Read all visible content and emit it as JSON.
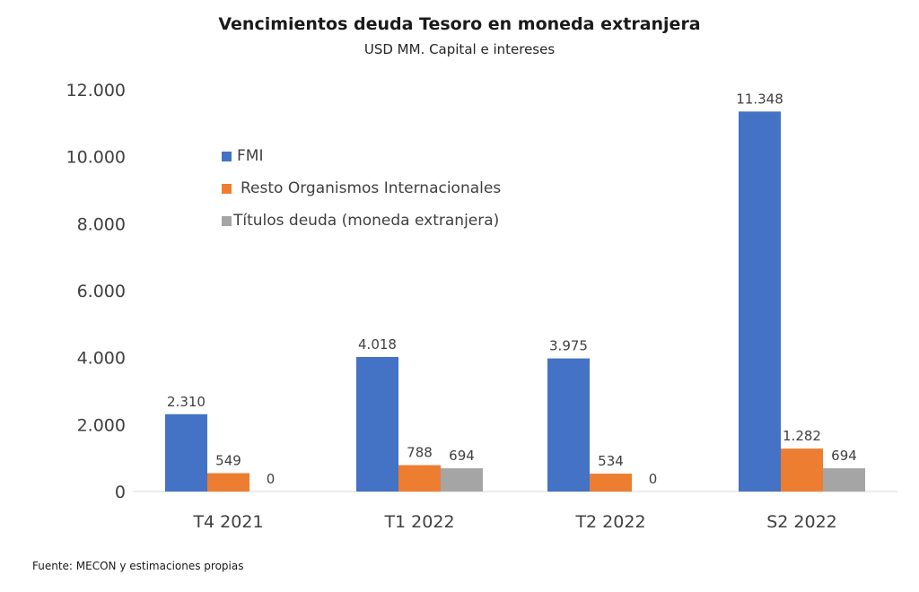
{
  "title": "Vencimientos deuda Tesoro en moneda extranjera",
  "subtitle": "USD MM. Capital e intereses",
  "source": "Fuente: MECON y estimaciones propias",
  "chart_data": {
    "type": "bar",
    "categories": [
      "T4 2021",
      "T1 2022",
      "T2 2022",
      "S2 2022"
    ],
    "series": [
      {
        "name": "FMI",
        "values": [
          2310,
          4018,
          3975,
          11348
        ],
        "labels": [
          "2.310",
          "4.018",
          "3.975",
          "11.348"
        ],
        "color": "#4472C4"
      },
      {
        "name": "Resto Organismos Internacionales",
        "values": [
          549,
          788,
          534,
          1282
        ],
        "labels": [
          "549",
          "788",
          "534",
          "1.282"
        ],
        "color": "#ED7D31"
      },
      {
        "name": "Títulos deuda (moneda extranjera)",
        "values": [
          0,
          694,
          0,
          694
        ],
        "labels": [
          "0",
          "694",
          "0",
          "694"
        ],
        "color": "#A5A5A5"
      }
    ],
    "yticks": [
      0,
      2000,
      4000,
      6000,
      8000,
      10000,
      12000
    ],
    "ytick_labels": [
      "0",
      "2.000",
      "4.000",
      "6.000",
      "8.000",
      "10.000",
      "12.000"
    ],
    "ylim": [
      0,
      12000
    ],
    "legend": "top-left"
  }
}
